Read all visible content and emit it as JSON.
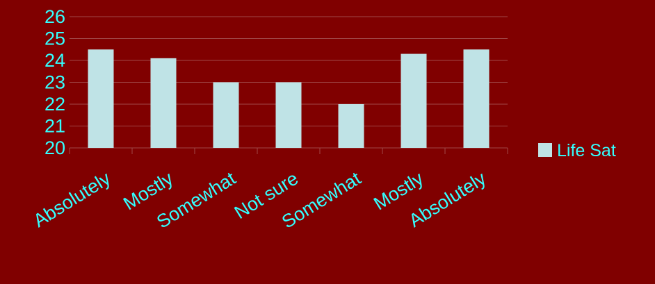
{
  "chart_data": {
    "type": "bar",
    "categories": [
      "Absolutely",
      "Mostly",
      "Somewhat",
      "Not sure",
      "Somewhat",
      "Mostly",
      "Absolutely"
    ],
    "series": [
      {
        "name": "Life Sat",
        "values": [
          24.5,
          24.1,
          23.0,
          23.0,
          22.0,
          24.3,
          24.5
        ]
      }
    ],
    "ylim": [
      20,
      26
    ],
    "yticks": [
      "20",
      "21",
      "22",
      "23",
      "24",
      "25",
      "26"
    ],
    "grid": true,
    "legend_position": "right",
    "colors": {
      "background": "#800000",
      "bar": "#bfe3e6",
      "gridline": "#a04848",
      "text": "#33ffff"
    }
  }
}
